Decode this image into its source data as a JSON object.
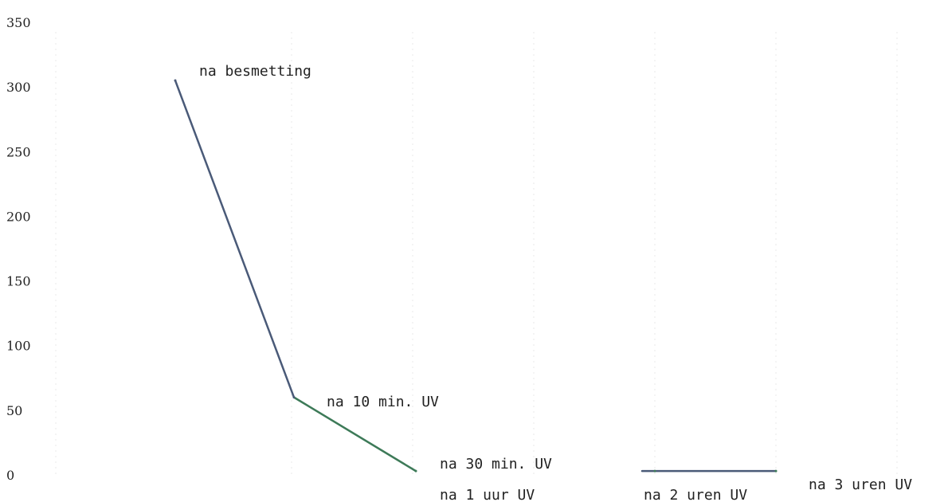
{
  "chart_data": {
    "type": "line",
    "title": "",
    "xlabel": "",
    "ylabel": "",
    "ylim": [
      0,
      350
    ],
    "yticks": [
      0,
      50,
      100,
      150,
      200,
      250,
      300,
      350
    ],
    "grid": true,
    "legend": "none",
    "line_colors": [
      "#4a5a78",
      "#3d7a58"
    ],
    "points": [
      {
        "label": "na besmetting",
        "y": 305
      },
      {
        "label": "na 10 min. UV",
        "y": 60
      },
      {
        "label": "na 30 min. UV",
        "y": 3
      },
      {
        "label": "na 1 uur UV",
        "y": null
      },
      {
        "label": "na 2 uren UV",
        "y": 3
      },
      {
        "label": "na 3 uren UV",
        "y": 3
      }
    ]
  }
}
